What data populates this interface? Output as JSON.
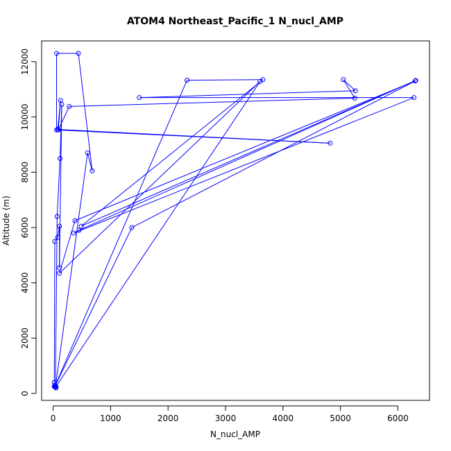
{
  "chart_data": {
    "type": "line",
    "title": "ATOM4 Northeast_Pacific_1 N_nucl_AMP",
    "xlabel": "N_nucl_AMP",
    "ylabel": "Altitude (m)",
    "xlim": [
      -200,
      6550
    ],
    "ylim": [
      -250,
      12750
    ],
    "x_ticks": [
      0,
      1000,
      2000,
      3000,
      4000,
      5000,
      6000
    ],
    "y_ticks": [
      0,
      2000,
      4000,
      6000,
      8000,
      10000,
      12000
    ],
    "grid": false,
    "legend": "none",
    "series_color": "#0000ff",
    "series": [
      {
        "marker": "open-circle",
        "points": [
          [
            50,
            200
          ],
          [
            20,
            250
          ],
          [
            30,
            300
          ],
          [
            20,
            400
          ],
          [
            30,
            5500
          ],
          [
            80,
            5650
          ],
          [
            110,
            6050
          ],
          [
            110,
            4550
          ],
          [
            150,
            10450
          ],
          [
            120,
            8500
          ],
          [
            70,
            6400
          ],
          [
            40,
            230
          ],
          [
            600,
            8700
          ],
          [
            680,
            8050
          ],
          [
            440,
            12300
          ],
          [
            60,
            12300
          ],
          [
            60,
            9530
          ],
          [
            4820,
            9050
          ],
          [
            80,
            9550
          ],
          [
            130,
            10600
          ],
          [
            90,
            9530
          ],
          [
            280,
            10380
          ],
          [
            5250,
            10680
          ],
          [
            5050,
            11350
          ],
          [
            5260,
            10950
          ],
          [
            1500,
            10700
          ],
          [
            6280,
            10700
          ],
          [
            360,
            5800
          ],
          [
            450,
            5900
          ],
          [
            6310,
            11320
          ],
          [
            490,
            6050
          ],
          [
            3650,
            11350
          ],
          [
            2330,
            11330
          ],
          [
            30,
            250
          ],
          [
            1370,
            6000
          ],
          [
            6300,
            11300
          ],
          [
            380,
            6250
          ],
          [
            110,
            4350
          ],
          [
            3600,
            11280
          ],
          [
            50,
            250
          ]
        ]
      }
    ]
  }
}
